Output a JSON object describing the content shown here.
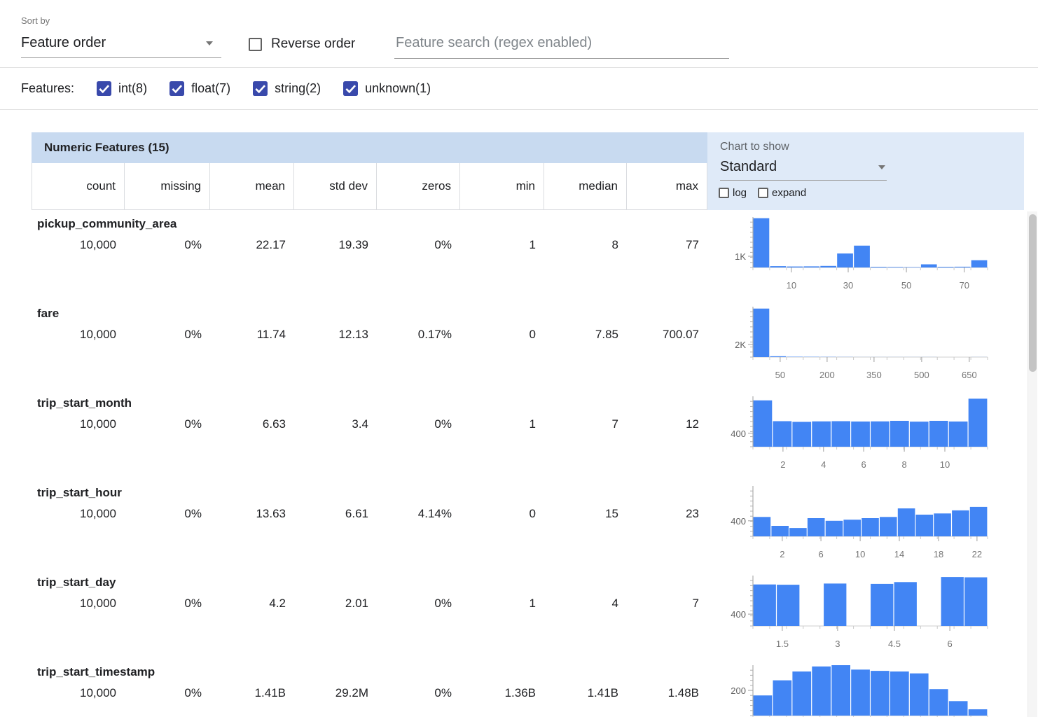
{
  "colors": {
    "bar": "#4285f4",
    "checkbox": "#3949ab",
    "band": "#c8daf0",
    "panel": "#dfeaf8"
  },
  "toolbar": {
    "sort_by_label": "Sort by",
    "sort_value": "Feature order",
    "reverse_label": "Reverse order",
    "search_placeholder": "Feature search (regex enabled)"
  },
  "features_bar": {
    "label": "Features:",
    "filters": [
      {
        "label": "int(8)",
        "checked": true
      },
      {
        "label": "float(7)",
        "checked": true
      },
      {
        "label": "string(2)",
        "checked": true
      },
      {
        "label": "unknown(1)",
        "checked": true
      }
    ]
  },
  "table": {
    "title": "Numeric Features (15)",
    "chart_panel": {
      "label": "Chart to show",
      "selected": "Standard",
      "log_label": "log",
      "expand_label": "expand"
    },
    "columns": [
      "count",
      "missing",
      "mean",
      "std dev",
      "zeros",
      "min",
      "median",
      "max"
    ],
    "rows": [
      {
        "name": "pickup_community_area",
        "values": [
          "10,000",
          "0%",
          "22.17",
          "19.39",
          "0%",
          "1",
          "8",
          "77"
        ]
      },
      {
        "name": "fare",
        "values": [
          "10,000",
          "0%",
          "11.74",
          "12.13",
          "0.17%",
          "0",
          "7.85",
          "700.07"
        ]
      },
      {
        "name": "trip_start_month",
        "values": [
          "10,000",
          "0%",
          "6.63",
          "3.4",
          "0%",
          "1",
          "7",
          "12"
        ]
      },
      {
        "name": "trip_start_hour",
        "values": [
          "10,000",
          "0%",
          "13.63",
          "6.61",
          "4.14%",
          "0",
          "15",
          "23"
        ]
      },
      {
        "name": "trip_start_day",
        "values": [
          "10,000",
          "0%",
          "4.2",
          "2.01",
          "0%",
          "1",
          "4",
          "7"
        ]
      },
      {
        "name": "trip_start_timestamp",
        "values": [
          "10,000",
          "0%",
          "1.41B",
          "29.2M",
          "0%",
          "1.36B",
          "1.41B",
          "1.48B"
        ]
      }
    ]
  },
  "chart_data": [
    {
      "type": "bar",
      "feature": "pickup_community_area",
      "ylabel": "1K",
      "ylabel_frac": 0.222,
      "ymax": 4500,
      "bars": [
        4400,
        120,
        90,
        100,
        140,
        1250,
        1950,
        60,
        50,
        40,
        280,
        60,
        70,
        650
      ],
      "xticks": [
        {
          "label": "10",
          "f": 0.164
        },
        {
          "label": "30",
          "f": 0.406
        },
        {
          "label": "50",
          "f": 0.654
        },
        {
          "label": "70",
          "f": 0.901
        }
      ]
    },
    {
      "type": "bar",
      "feature": "fare",
      "ylabel": "2K",
      "ylabel_frac": 0.25,
      "ymax": 8000,
      "bars": [
        7700,
        130,
        60,
        40,
        28,
        20,
        15,
        12,
        10,
        8,
        6,
        5,
        4,
        10
      ],
      "xticks": [
        {
          "label": "50",
          "f": 0.116
        },
        {
          "label": "200",
          "f": 0.316
        },
        {
          "label": "350",
          "f": 0.516
        },
        {
          "label": "500",
          "f": 0.719
        },
        {
          "label": "650",
          "f": 0.922
        }
      ]
    },
    {
      "type": "bar",
      "feature": "trip_start_month",
      "ylabel": "400",
      "ylabel_frac": 0.267,
      "ymax": 1500,
      "bars": [
        1380,
        760,
        740,
        755,
        760,
        750,
        755,
        770,
        745,
        770,
        750,
        1430
      ],
      "xticks": [
        {
          "label": "2",
          "f": 0.128
        },
        {
          "label": "4",
          "f": 0.301
        },
        {
          "label": "6",
          "f": 0.472
        },
        {
          "label": "8",
          "f": 0.645
        },
        {
          "label": "10",
          "f": 0.818
        }
      ]
    },
    {
      "type": "bar",
      "feature": "trip_start_hour",
      "ylabel": "400",
      "ylabel_frac": 0.308,
      "ymax": 1300,
      "bars": [
        500,
        270,
        215,
        470,
        400,
        430,
        470,
        500,
        720,
        560,
        590,
        670,
        760
      ],
      "xticks": [
        {
          "label": "2",
          "f": 0.125
        },
        {
          "label": "6",
          "f": 0.29
        },
        {
          "label": "10",
          "f": 0.457
        },
        {
          "label": "14",
          "f": 0.624
        },
        {
          "label": "18",
          "f": 0.791
        },
        {
          "label": "22",
          "f": 0.955
        }
      ]
    },
    {
      "type": "bar",
      "feature": "trip_start_day",
      "ylabel": "400",
      "ylabel_frac": 0.235,
      "ymax": 1700,
      "bars": [
        1400,
        1390,
        0,
        1430,
        0,
        1420,
        1480,
        0,
        1650,
        1640
      ],
      "xticks": [
        {
          "label": "1.5",
          "f": 0.125
        },
        {
          "label": "3",
          "f": 0.361
        },
        {
          "label": "4.5",
          "f": 0.603
        },
        {
          "label": "6",
          "f": 0.839
        }
      ]
    },
    {
      "type": "bar",
      "feature": "trip_start_timestamp",
      "ylabel": "200",
      "ylabel_frac": 0.5,
      "ymax": 400,
      "bars": [
        160,
        280,
        350,
        390,
        400,
        365,
        355,
        350,
        335,
        210,
        115,
        50
      ],
      "xticks": []
    }
  ]
}
